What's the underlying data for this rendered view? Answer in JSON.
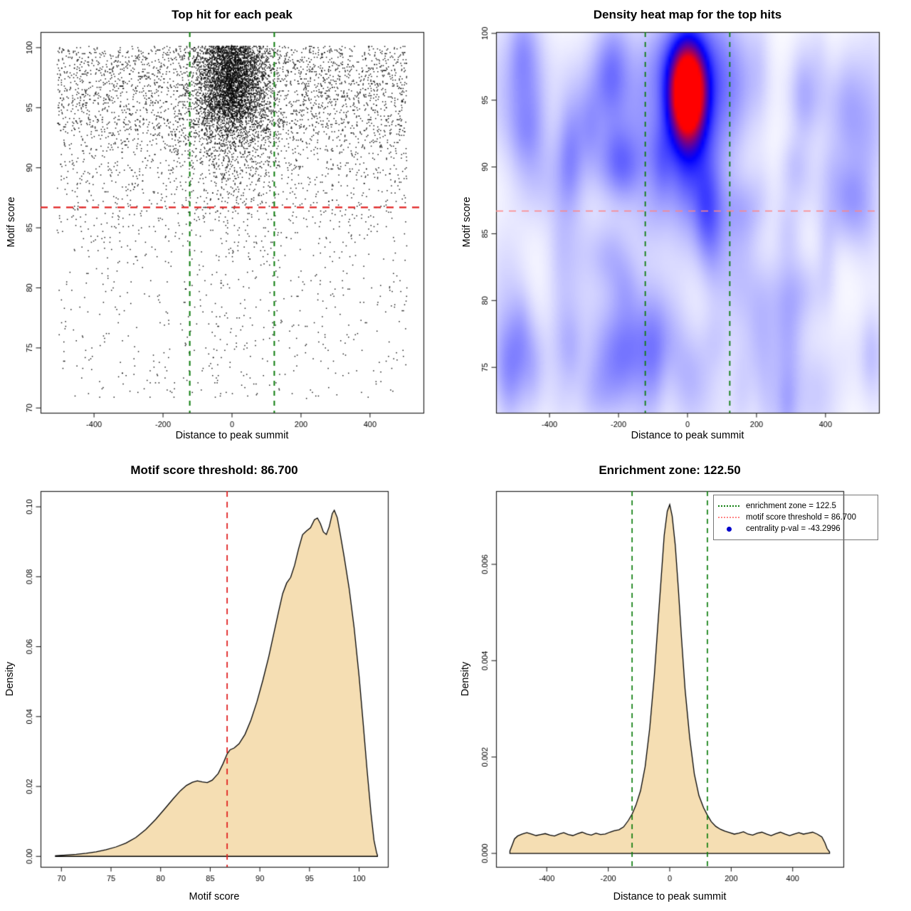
{
  "page": {
    "background": "#ffffff"
  },
  "colors": {
    "green_dash": "#0d7d0d",
    "red_dash": "#e02020",
    "red_light_dash": "#ff8585",
    "wheat_fill": "#f5deb3",
    "curve_stroke": "#000000",
    "point_color": "#000000",
    "legend_dot_blue": "#0000cc",
    "box_border": "#222222",
    "heat_colormap": [
      "#ffffff",
      "#0000ff",
      "#ff0000"
    ]
  },
  "chart_data": [
    {
      "id": "top-hits-scatter",
      "type": "scatter",
      "title": "Top hit for each peak",
      "xlabel": "Distance to peak summit",
      "ylabel": "Motif score",
      "xlim": [
        -555,
        555
      ],
      "ylim": [
        69.6,
        101.3
      ],
      "xticks": [
        -400,
        -200,
        0,
        200,
        400
      ],
      "xticklabels": [
        "-400",
        "-200",
        "0",
        "200",
        "400"
      ],
      "yticks": [
        70,
        75,
        80,
        85,
        90,
        95,
        100
      ],
      "yticklabels": [
        "70",
        "75",
        "80",
        "85",
        "90",
        "95",
        "100"
      ],
      "vlines": {
        "values": [
          -122.5,
          122.5
        ],
        "color_key": "green_dash",
        "dash": [
          7,
          7
        ],
        "width": 2
      },
      "hline": {
        "value": 86.7,
        "color_key": "red_dash",
        "dash": [
          10,
          8
        ],
        "width": 2.2
      },
      "points": {
        "n": 9000,
        "seed": 1234567,
        "y_quantum": 0.1,
        "y_components": [
          {
            "w": 0.7,
            "type": "gauss",
            "mu": 96.9,
            "sd": 2.6,
            "fold": 100.15
          },
          {
            "w": 0.18,
            "type": "gauss",
            "mu": 92.0,
            "sd": 4.5
          },
          {
            "w": 0.12,
            "type": "uniform",
            "lo": 70.8,
            "hi": 100.1
          }
        ],
        "central_prob": [
          [
            94,
            0.62
          ],
          [
            90,
            0.4
          ],
          [
            87,
            0.22
          ],
          [
            0,
            0.1
          ]
        ],
        "central_sigma": [
          [
            94,
            52
          ],
          [
            0,
            75
          ]
        ],
        "x_uniform_halfwidth": 507,
        "description": "Motif score (quantized to 0.1) vs distance; dense near x=0 for scores > 90, sparse uniform background below threshold 86.7"
      }
    },
    {
      "id": "density-heatmap",
      "type": "heatmap",
      "title": "Density heat map for the top hits",
      "xlabel": "Distance to peak summit",
      "ylabel": "Motif score",
      "xlim": [
        -555,
        555
      ],
      "ylim": [
        71.6,
        100.1
      ],
      "xticks": [
        -400,
        -200,
        0,
        200,
        400
      ],
      "xticklabels": [
        "-400",
        "-200",
        "0",
        "200",
        "400"
      ],
      "yticks": [
        75,
        80,
        85,
        90,
        95,
        100
      ],
      "yticklabels": [
        "75",
        "80",
        "85",
        "90",
        "95",
        "100"
      ],
      "vlines": {
        "values": [
          -122.5,
          122.5
        ],
        "color_key": "green_dash",
        "dash": [
          7,
          7
        ],
        "width": 1.8
      },
      "hline": {
        "value": 86.7,
        "color_key": "red_light_dash",
        "dash": [
          10,
          8
        ],
        "width": 1.6
      },
      "hotspot": {
        "cx": 0,
        "cy": 95.6,
        "sx": 33,
        "sy": 2.3,
        "amp": 1.25
      },
      "halo": {
        "cx": 0,
        "cy": 94.8,
        "sx": 75,
        "sy": 5.2,
        "amp": 0.32
      },
      "tail": {
        "cx": 0,
        "cy": 89.5,
        "sx": 50,
        "sy": 4.5,
        "amp": 0.1
      },
      "noise": {
        "bumps": 150,
        "seed": 9090,
        "amp": [
          0.02,
          0.075
        ],
        "sx": [
          20,
          55
        ],
        "sy": [
          1.5,
          3.5
        ]
      },
      "description": "2D density of top hits: red core near (0, 95.6), blue halo, faint blue noise elsewhere"
    },
    {
      "id": "motif-score-density",
      "type": "area",
      "title": "Motif score threshold: 86.700",
      "xlabel": "Motif score",
      "ylabel": "Density",
      "xlim": [
        67.9,
        102.9
      ],
      "ylim": [
        -0.003,
        0.1045
      ],
      "xticks": [
        70,
        75,
        80,
        85,
        90,
        95,
        100
      ],
      "xticklabels": [
        "70",
        "75",
        "80",
        "85",
        "90",
        "95",
        "100"
      ],
      "yticks": [
        0,
        0.02,
        0.04,
        0.06,
        0.08,
        0.1
      ],
      "yticklabels": [
        "0.00",
        "0.02",
        "0.04",
        "0.06",
        "0.08",
        "0.10"
      ],
      "vlines": {
        "values": [
          86.7
        ],
        "color_key": "red_dash",
        "dash": [
          8,
          7
        ],
        "width": 1.8
      },
      "curve": {
        "x": [
          69.4,
          70.5,
          71.5,
          72.5,
          73.5,
          74.5,
          75.5,
          76.5,
          77.5,
          78.5,
          79.5,
          80.5,
          81.3,
          82.0,
          82.6,
          83.2,
          83.7,
          84.2,
          84.7,
          85.2,
          85.8,
          86.3,
          86.7,
          87.0,
          87.4,
          87.9,
          88.5,
          89.1,
          89.7,
          90.3,
          90.9,
          91.4,
          91.9,
          92.3,
          92.7,
          93.1,
          93.5,
          93.9,
          94.3,
          94.7,
          95.1,
          95.5,
          95.8,
          96.1,
          96.4,
          96.7,
          97.0,
          97.3,
          97.5,
          97.8,
          98.1,
          98.5,
          99.0,
          99.5,
          100.0,
          100.4,
          100.8,
          101.2,
          101.5,
          101.75,
          101.85
        ],
        "y": [
          0.0002,
          0.0004,
          0.0006,
          0.0009,
          0.0013,
          0.0019,
          0.0027,
          0.0038,
          0.0054,
          0.0077,
          0.0106,
          0.0139,
          0.0166,
          0.0188,
          0.0203,
          0.0212,
          0.0216,
          0.0213,
          0.0211,
          0.0218,
          0.0237,
          0.0266,
          0.0293,
          0.0305,
          0.031,
          0.0322,
          0.0349,
          0.039,
          0.0442,
          0.0504,
          0.0572,
          0.0637,
          0.0702,
          0.0752,
          0.0782,
          0.0798,
          0.0833,
          0.088,
          0.092,
          0.0931,
          0.094,
          0.0963,
          0.0968,
          0.0952,
          0.0928,
          0.0921,
          0.0944,
          0.0981,
          0.099,
          0.0969,
          0.0922,
          0.0856,
          0.0766,
          0.0654,
          0.0515,
          0.0384,
          0.0248,
          0.0123,
          0.0046,
          0.0012,
          0.0003
        ]
      }
    },
    {
      "id": "distance-density",
      "type": "area",
      "title": "Enrichment zone: 122.50",
      "xlabel": "Distance to peak summit",
      "ylabel": "Density",
      "xlim": [
        -565,
        565
      ],
      "ylim": [
        -0.00028,
        0.00752
      ],
      "xticks": [
        -400,
        -200,
        0,
        200,
        400
      ],
      "xticklabels": [
        "-400",
        "-200",
        "0",
        "200",
        "400"
      ],
      "yticks": [
        0,
        0.002,
        0.004,
        0.006
      ],
      "yticklabels": [
        "0.000",
        "0.002",
        "0.004",
        "0.006"
      ],
      "vlines": {
        "values": [
          -122.5,
          122.5
        ],
        "color_key": "green_dash",
        "dash": [
          7,
          6
        ],
        "width": 1.7
      },
      "curve": {
        "x": [
          -520,
          -512,
          -505,
          -495,
          -480,
          -465,
          -450,
          -435,
          -420,
          -405,
          -390,
          -375,
          -360,
          -345,
          -330,
          -315,
          -300,
          -285,
          -270,
          -255,
          -240,
          -225,
          -210,
          -195,
          -180,
          -165,
          -150,
          -135,
          -122,
          -110,
          -95,
          -80,
          -65,
          -50,
          -38,
          -28,
          -18,
          -8,
          0,
          8,
          18,
          28,
          38,
          50,
          65,
          80,
          95,
          110,
          122,
          135,
          150,
          165,
          180,
          195,
          210,
          225,
          240,
          255,
          270,
          285,
          300,
          315,
          330,
          345,
          360,
          375,
          390,
          405,
          420,
          435,
          450,
          465,
          480,
          495,
          505,
          512,
          520
        ],
        "y": [
          5e-05,
          0.00018,
          0.0003,
          0.00036,
          0.0004,
          0.00043,
          0.0004,
          0.00037,
          0.00039,
          0.00041,
          0.00038,
          0.00036,
          0.0004,
          0.00043,
          0.00039,
          0.00037,
          0.00041,
          0.00044,
          0.0004,
          0.00038,
          0.00042,
          0.00039,
          0.0004,
          0.00044,
          0.00047,
          0.00049,
          0.00055,
          0.00068,
          0.00082,
          0.001,
          0.0013,
          0.0018,
          0.0026,
          0.0037,
          0.0048,
          0.0057,
          0.0066,
          0.0071,
          0.00724,
          0.007,
          0.0064,
          0.0055,
          0.0045,
          0.0034,
          0.0024,
          0.00165,
          0.0012,
          0.00095,
          0.0008,
          0.00066,
          0.00056,
          0.0005,
          0.00046,
          0.00043,
          0.0004,
          0.00042,
          0.00045,
          0.0004,
          0.00038,
          0.00042,
          0.00044,
          0.0004,
          0.00037,
          0.00041,
          0.00044,
          0.0004,
          0.00037,
          0.0004,
          0.00043,
          0.0004,
          0.00042,
          0.00044,
          0.0004,
          0.00034,
          0.00022,
          0.0001,
          3e-05
        ]
      },
      "legend": {
        "entries": [
          {
            "label": "enrichment zone = 122.5",
            "sample": "green-dotted"
          },
          {
            "label": "motif score threshold = 86.700",
            "sample": "red-dotted"
          },
          {
            "label": "centrality p-val = -43.2996",
            "sample": "blue-dot"
          }
        ]
      }
    }
  ]
}
